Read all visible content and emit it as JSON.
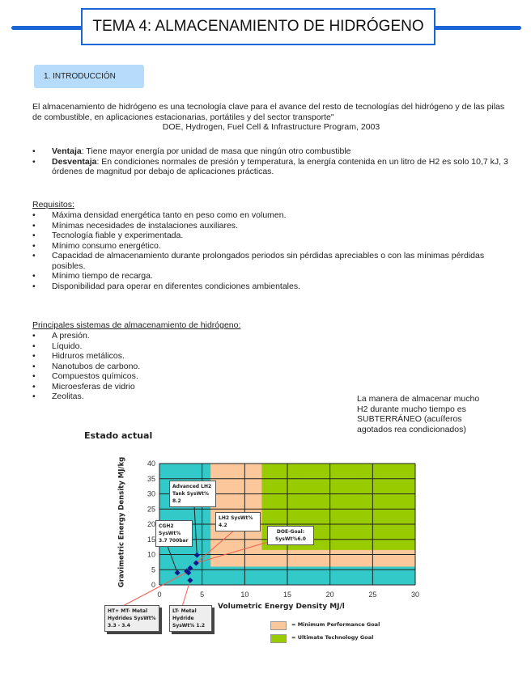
{
  "title": "TEMA 4: ALMACENAMIENTO DE HIDRÓGENO",
  "section": "1.   INTRODUCCIÓN",
  "quote": "El almacenamiento de hidrógeno es una tecnología clave para el avance del resto de tecnologías del hidrógeno y de las pilas de combustible, en aplicaciones estacionarias, portátiles y del sector transporte\"",
  "quote_source": "DOE, Hydrogen, Fuel Cell & Infrastructure Program, 2003",
  "pros_cons": [
    {
      "term": "Ventaja",
      "text": ": Tiene mayor energía por unidad de masa que ningún otro combustible"
    },
    {
      "term": "Desventaja",
      "text": ": En condiciones normales de presión y temperatura, la energía contenida en un litro de H2 es solo 10,7 kJ, 3 órdenes de magnitud por debajo de aplicaciones prácticas."
    }
  ],
  "requirements_heading": "Requisitos:",
  "requirements": [
    "Máxima densidad energética tanto en peso como en volumen.",
    "Mínimas necesidades de instalaciones auxiliares.",
    "Tecnología fiable y experimentada.",
    "Mínimo consumo energético.",
    "Capacidad de almacenamiento durante prolongados periodos sin pérdidas apreciables o con las mínimas pérdidas posibles.",
    "Mínimo tiempo de recarga.",
    "Disponibilidad para operar en diferentes condiciones ambientales."
  ],
  "systems_heading": "Principales sistemas de almacenamiento de hidrógeno:",
  "systems": [
    "A presión.",
    "Líquido.",
    "Hidruros metálicos.",
    "Nanotubos de carbono.",
    "Compuestos químicos.",
    "Microesferas de vidrio",
    "Zeolitas."
  ],
  "side_note": "La manera de almacenar mucho H2 durante mucho tiempo es SUBTERRÁNEO (acuíferos agotados rea condicionados)",
  "chart_data": {
    "type": "scatter",
    "title": "Estado actual",
    "xlabel": "Volumetric Energy Density   MJ/l",
    "ylabel": "Gravimetric Energy Density MJ/kg",
    "xlim": [
      0,
      30
    ],
    "ylim": [
      0,
      40
    ],
    "xticks": [
      "0",
      "5",
      "10",
      "15",
      "20",
      "25",
      "30"
    ],
    "yticks": [
      "0",
      "5",
      "10",
      "15",
      "20",
      "25",
      "30",
      "35",
      "40"
    ],
    "grid": true,
    "colors": {
      "background": "#33c9c9",
      "min_goal": "#fcc89b",
      "ultimate_goal": "#99cc00",
      "points": "#0a1a8c"
    },
    "regions": [
      {
        "name": "min",
        "x_from": 6,
        "y_from": 6
      },
      {
        "name": "ultimate",
        "x_from": 12,
        "y_from": 11.5
      }
    ],
    "points": [
      [
        2.1,
        4
      ],
      [
        3.2,
        4.5
      ],
      [
        3.4,
        4
      ],
      [
        3.6,
        5.5
      ],
      [
        3.6,
        1.5
      ],
      [
        4.3,
        7.2
      ],
      [
        4.4,
        9.8
      ]
    ],
    "annotations": [
      "Advanced LH2 Tank SysWt% 8.2",
      "CGH2 SysWt% 3.7 700bar",
      "LH2 SysWt% 4.2",
      "DOE-Goal: SysWt%6.0",
      "HT+ MT- Metal Hydrides SysWt% 3.3 - 3.4",
      "LT- Metal Hydride SysWt% 1.2"
    ],
    "legend": [
      {
        "label": "=  Minimum Performance Goal"
      },
      {
        "label": "=  Ultimate Technology Goal"
      }
    ]
  }
}
